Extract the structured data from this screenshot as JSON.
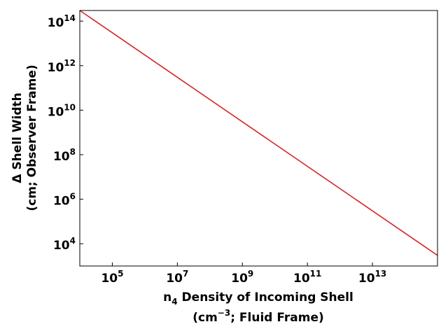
{
  "chart_data": {
    "type": "line",
    "x_scale": "log",
    "y_scale": "log",
    "xlim": [
      10000.0,
      1000000000000000.0
    ],
    "ylim": [
      1000.0,
      300000000000000.0
    ],
    "xticks": [
      100000.0,
      10000000.0,
      1000000000.0,
      100000000000.0,
      10000000000000.0
    ],
    "xtick_labels": [
      {
        "base": "10",
        "exp": "5"
      },
      {
        "base": "10",
        "exp": "7"
      },
      {
        "base": "10",
        "exp": "9"
      },
      {
        "base": "10",
        "exp": "11"
      },
      {
        "base": "10",
        "exp": "13"
      }
    ],
    "yticks": [
      10000.0,
      1000000.0,
      100000000.0,
      10000000000.0,
      1000000000000.0,
      100000000000000.0
    ],
    "ytick_labels": [
      {
        "base": "10",
        "exp": "4"
      },
      {
        "base": "10",
        "exp": "6"
      },
      {
        "base": "10",
        "exp": "8"
      },
      {
        "base": "10",
        "exp": "10"
      },
      {
        "base": "10",
        "exp": "12"
      },
      {
        "base": "10",
        "exp": "14"
      }
    ],
    "xlabel": {
      "line1_prefix": "n",
      "line1_sub": "4",
      "line1_rest": " Density of Incoming Shell",
      "line2_prefix": "(cm",
      "line2_sup": "−3",
      "line2_rest": "; Fluid Frame)"
    },
    "ylabel": {
      "line1": "Δ Shell Width",
      "line2": "(cm; Observer Frame)"
    },
    "series": [
      {
        "color": "#d62728",
        "x": [
          10000.0,
          1000000000000000.0
        ],
        "y": [
          300000000000000.0,
          3000.0
        ]
      }
    ],
    "grid": false,
    "legend": false
  }
}
